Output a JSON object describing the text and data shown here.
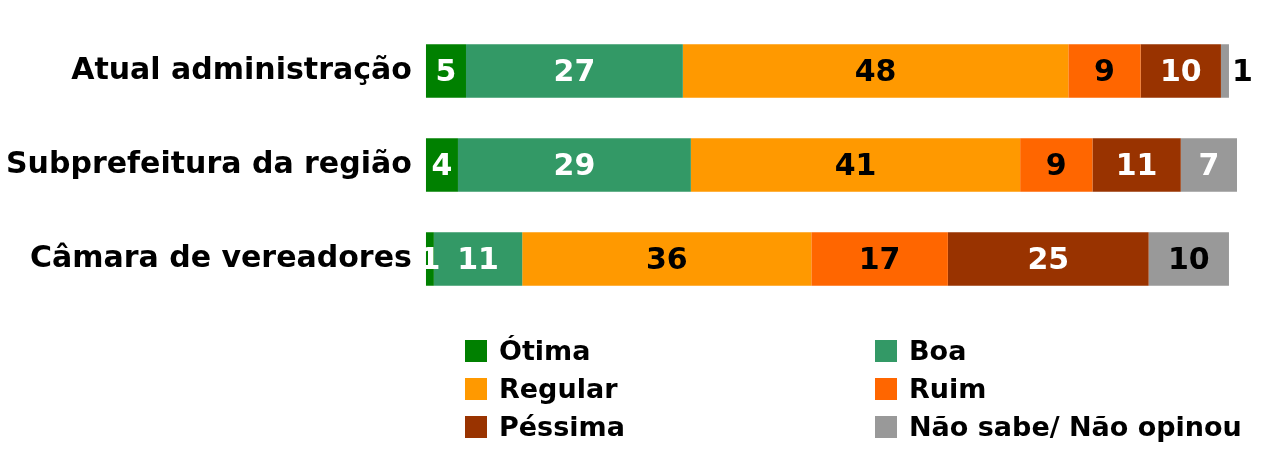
{
  "chart_data": {
    "type": "bar",
    "orientation": "horizontal",
    "stacked": true,
    "data_labels": true,
    "legend": "bottom",
    "categories": [
      "Atual administração",
      "Subprefeitura da região",
      "Câmara de vereadores"
    ],
    "series": [
      {
        "name": "Ótima",
        "color": "#008000",
        "values": [
          5,
          4,
          1
        ]
      },
      {
        "name": "Boa",
        "color": "#339966",
        "values": [
          27,
          29,
          11
        ]
      },
      {
        "name": "Regular",
        "color": "#ff9900",
        "values": [
          48,
          41,
          36
        ]
      },
      {
        "name": "Ruim",
        "color": "#ff6600",
        "values": [
          9,
          9,
          17
        ]
      },
      {
        "name": "Péssima",
        "color": "#993300",
        "values": [
          10,
          11,
          25
        ]
      },
      {
        "name": "Não sabe/ Não opinou",
        "color": "#999999",
        "values": [
          1,
          7,
          10
        ]
      }
    ]
  }
}
